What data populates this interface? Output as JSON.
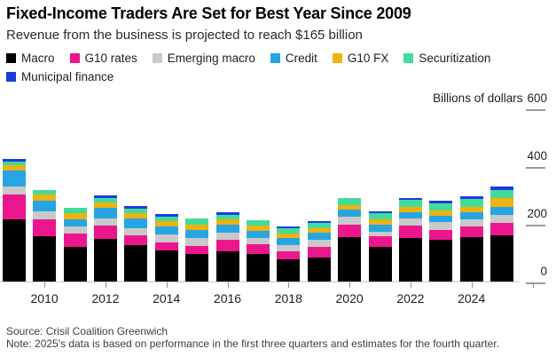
{
  "header": {
    "title": "Fixed-Income Traders Are Set for Best Year Since 2009",
    "subtitle": "Revenue from the business is projected to reach $165 billion"
  },
  "footer": {
    "source": "Source: Crisil Coalition Greenwich",
    "note": "Note: 2025's data is based on performance in the first three quarters and estimates for the fourth quarter."
  },
  "legend": {
    "rows": [
      [
        "macro",
        "g10_rates",
        "emerging_macro",
        "credit",
        "g10_fx",
        "securitization"
      ],
      [
        "municipal_finance"
      ]
    ]
  },
  "chart_data": {
    "type": "bar",
    "stacked": true,
    "title": "Fixed-Income Traders Are Set for Best Year Since 2009",
    "xlabel": "",
    "ylabel": "Billions of dollars",
    "ylim": [
      0,
      600
    ],
    "grid": false,
    "legend_position": "top",
    "categories": [
      2009,
      2010,
      2011,
      2012,
      2013,
      2014,
      2015,
      2016,
      2017,
      2018,
      2019,
      2020,
      2021,
      2022,
      2023,
      2024,
      2025
    ],
    "series": [
      {
        "key": "macro",
        "name": "Macro",
        "color": "#000000",
        "values": [
          218,
          159,
          124,
          152,
          128,
          110,
          97,
          109,
          100,
          80,
          87,
          157,
          124,
          155,
          147,
          157,
          162
        ]
      },
      {
        "key": "g10_rates",
        "name": "G10 rates",
        "color": "#ec168c",
        "values": [
          88,
          60,
          45,
          44,
          34,
          28,
          29,
          38,
          33,
          28,
          37,
          43,
          35,
          43,
          36,
          38,
          43
        ]
      },
      {
        "key": "emerging_macro",
        "name": "Emerging macro",
        "color": "#c9c9c9",
        "values": [
          26,
          28,
          24,
          25,
          26,
          29,
          29,
          26,
          22,
          21,
          23,
          27,
          16,
          23,
          26,
          23,
          29
        ]
      },
      {
        "key": "credit",
        "name": "Credit",
        "color": "#27a5e3",
        "values": [
          55,
          37,
          26,
          37,
          33,
          28,
          28,
          28,
          25,
          26,
          24,
          25,
          25,
          21,
          23,
          24,
          29
        ]
      },
      {
        "key": "g10_fx",
        "name": "G10 FX",
        "color": "#eeb211",
        "values": [
          20,
          21,
          21,
          18,
          18,
          16,
          17,
          17,
          16,
          15,
          17,
          16,
          18,
          20,
          18,
          19,
          28
        ]
      },
      {
        "key": "securitization",
        "name": "Securitization",
        "color": "#42dc9a",
        "values": [
          12,
          14,
          18,
          17,
          18,
          18,
          21,
          17,
          21,
          18,
          18,
          25,
          21,
          23,
          24,
          29,
          28
        ]
      },
      {
        "key": "municipal_finance",
        "name": "Municipal finance",
        "color": "#1d3ce0",
        "values": [
          10,
          0,
          0,
          10,
          8,
          8,
          0,
          7,
          0,
          7,
          7,
          0,
          8,
          8,
          9,
          8,
          13
        ]
      }
    ],
    "totals": [
      429,
      319,
      258,
      303,
      265,
      237,
      221,
      242,
      217,
      195,
      213,
      293,
      247,
      293,
      283,
      298,
      332
    ],
    "y_axis": {
      "unit_label": "Billions of dollars",
      "ticks": [
        {
          "label": "600",
          "value": 600,
          "show_unit": true
        },
        {
          "label": "400",
          "value": 400
        },
        {
          "label": "200",
          "value": 200
        },
        {
          "label": "0",
          "value": 0
        }
      ]
    },
    "x_axis": {
      "ticks": [
        {
          "label": "2010",
          "slot": 1
        },
        {
          "label": "2012",
          "slot": 3
        },
        {
          "label": "2014",
          "slot": 5
        },
        {
          "label": "2016",
          "slot": 7
        },
        {
          "label": "2018",
          "slot": 9
        },
        {
          "label": "2020",
          "slot": 11
        },
        {
          "label": "2022",
          "slot": 13
        },
        {
          "label": "2024",
          "slot": 15
        },
        {
          "label": "",
          "slot": 17
        }
      ]
    }
  }
}
